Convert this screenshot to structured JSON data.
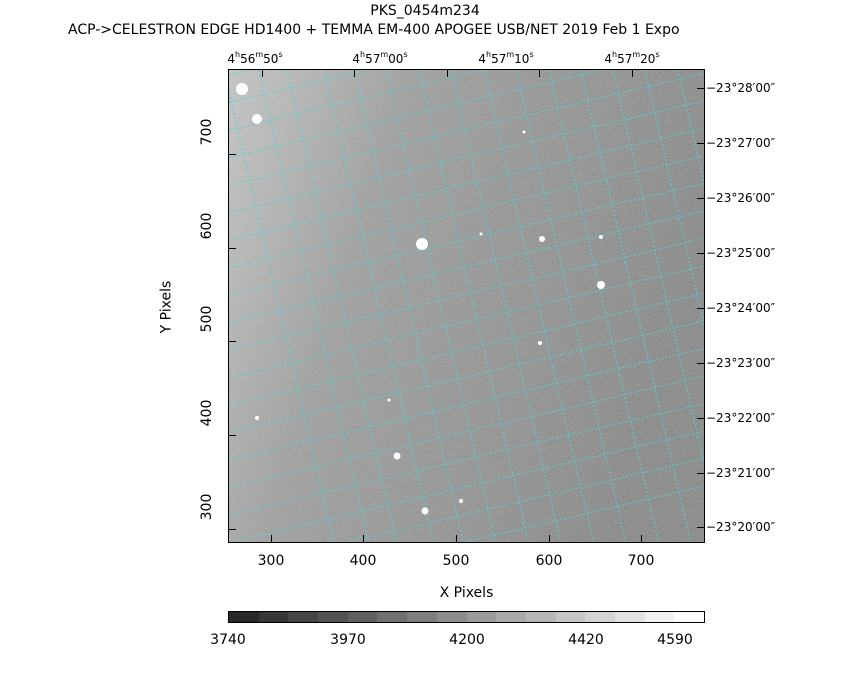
{
  "header": {
    "title": "PKS_0454m234",
    "subtitle": "ACP->CELESTRON EDGE HD1400 + TEMMA EM-400 APOGEE USB/NET   2019 Feb  1     Expo"
  },
  "axes": {
    "x_label": "X Pixels",
    "y_label": "Y Pixels",
    "x_ticks": [
      "300",
      "400",
      "500",
      "600",
      "700"
    ],
    "y_ticks": [
      "300",
      "400",
      "500",
      "600",
      "700"
    ],
    "ra_ticks": [
      {
        "h": "4",
        "m": "56",
        "s": "50"
      },
      {
        "h": "4",
        "m": "57",
        "s": "00"
      },
      {
        "h": "4",
        "m": "57",
        "s": "10"
      },
      {
        "h": "4",
        "m": "57",
        "s": "20"
      }
    ],
    "dec_ticks": [
      "−23°28′00″",
      "−23°27′00″",
      "−23°26′00″",
      "−23°25′00″",
      "−23°24′00″",
      "−23°23′00″",
      "−23°22′00″",
      "−23°21′00″",
      "−23°20′00″"
    ]
  },
  "colorbar": {
    "labels": [
      "3740",
      "3970",
      "4200",
      "4420",
      "4590"
    ]
  },
  "colors": {
    "grid": "#4fd3d3",
    "background": "#8e8e8e"
  }
}
